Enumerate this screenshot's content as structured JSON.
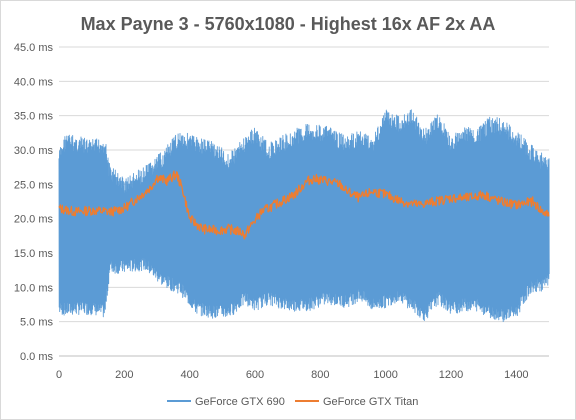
{
  "chart_data": {
    "type": "line",
    "title": "Max Payne 3 - 5760x1080 - Highest 16x AF 2x AA",
    "xlabel": "",
    "ylabel": "",
    "xlim": [
      0,
      1500
    ],
    "ylim": [
      0,
      45
    ],
    "x_ticks": [
      "0",
      "200",
      "400",
      "600",
      "800",
      "1000",
      "1200",
      "1400"
    ],
    "y_ticks": [
      "0.0 ms",
      "5.0 ms",
      "10.0 ms",
      "15.0 ms",
      "20.0 ms",
      "25.0 ms",
      "30.0 ms",
      "35.0 ms",
      "40.0 ms",
      "45.0 ms"
    ],
    "grid": "horizontal",
    "legend_position": "bottom",
    "series": [
      {
        "name": "GeForce GTX 690",
        "color": "#5b9bd5",
        "style": "oscillating frame times; low and high envelopes per segment",
        "x": [
          0,
          20,
          60,
          100,
          140,
          155,
          200,
          260,
          320,
          370,
          420,
          470,
          520,
          570,
          600,
          640,
          700,
          760,
          820,
          880,
          920,
          960,
          1000,
          1040,
          1080,
          1120,
          1160,
          1200,
          1240,
          1280,
          1320,
          1360,
          1400,
          1440,
          1480,
          1500
        ],
        "low": [
          6.0,
          5.8,
          6.0,
          6.0,
          5.5,
          12.0,
          12.0,
          12.5,
          10.0,
          9.0,
          6.0,
          5.5,
          5.5,
          7.5,
          6.5,
          7.5,
          6.5,
          6.5,
          7.5,
          7.0,
          8.0,
          6.5,
          7.0,
          8.0,
          6.5,
          5.0,
          7.5,
          6.0,
          6.5,
          6.5,
          5.5,
          5.0,
          5.5,
          9.0,
          9.5,
          10.0
        ],
        "high": [
          30.0,
          32.5,
          32.0,
          31.5,
          32.0,
          28.0,
          26.0,
          27.5,
          30.0,
          33.0,
          32.0,
          31.5,
          29.5,
          32.0,
          33.5,
          31.0,
          32.5,
          34.0,
          33.5,
          32.0,
          33.0,
          32.0,
          36.0,
          35.0,
          36.0,
          33.0,
          35.5,
          32.0,
          33.5,
          33.0,
          35.0,
          34.5,
          33.0,
          31.0,
          29.5,
          29.0
        ]
      },
      {
        "name": "GeForce GTX Titan",
        "color": "#ed7d31",
        "style": "frame time trace with small jitter",
        "x": [
          0,
          50,
          100,
          160,
          200,
          240,
          280,
          300,
          330,
          360,
          380,
          400,
          440,
          480,
          520,
          560,
          570,
          580,
          620,
          680,
          720,
          760,
          780,
          820,
          860,
          880,
          920,
          960,
          1000,
          1050,
          1100,
          1150,
          1200,
          1250,
          1300,
          1350,
          1400,
          1450,
          1480,
          1500
        ],
        "y": [
          21.5,
          21.0,
          21.2,
          21.0,
          21.5,
          23.0,
          24.5,
          26.0,
          25.5,
          26.5,
          24.0,
          20.0,
          18.5,
          18.3,
          18.5,
          18.0,
          17.5,
          18.5,
          21.0,
          22.5,
          23.5,
          25.5,
          25.8,
          25.5,
          25.0,
          24.0,
          23.0,
          24.0,
          23.5,
          22.5,
          22.0,
          22.5,
          23.0,
          23.0,
          23.5,
          22.5,
          22.0,
          22.5,
          21.0,
          20.5
        ]
      }
    ]
  }
}
